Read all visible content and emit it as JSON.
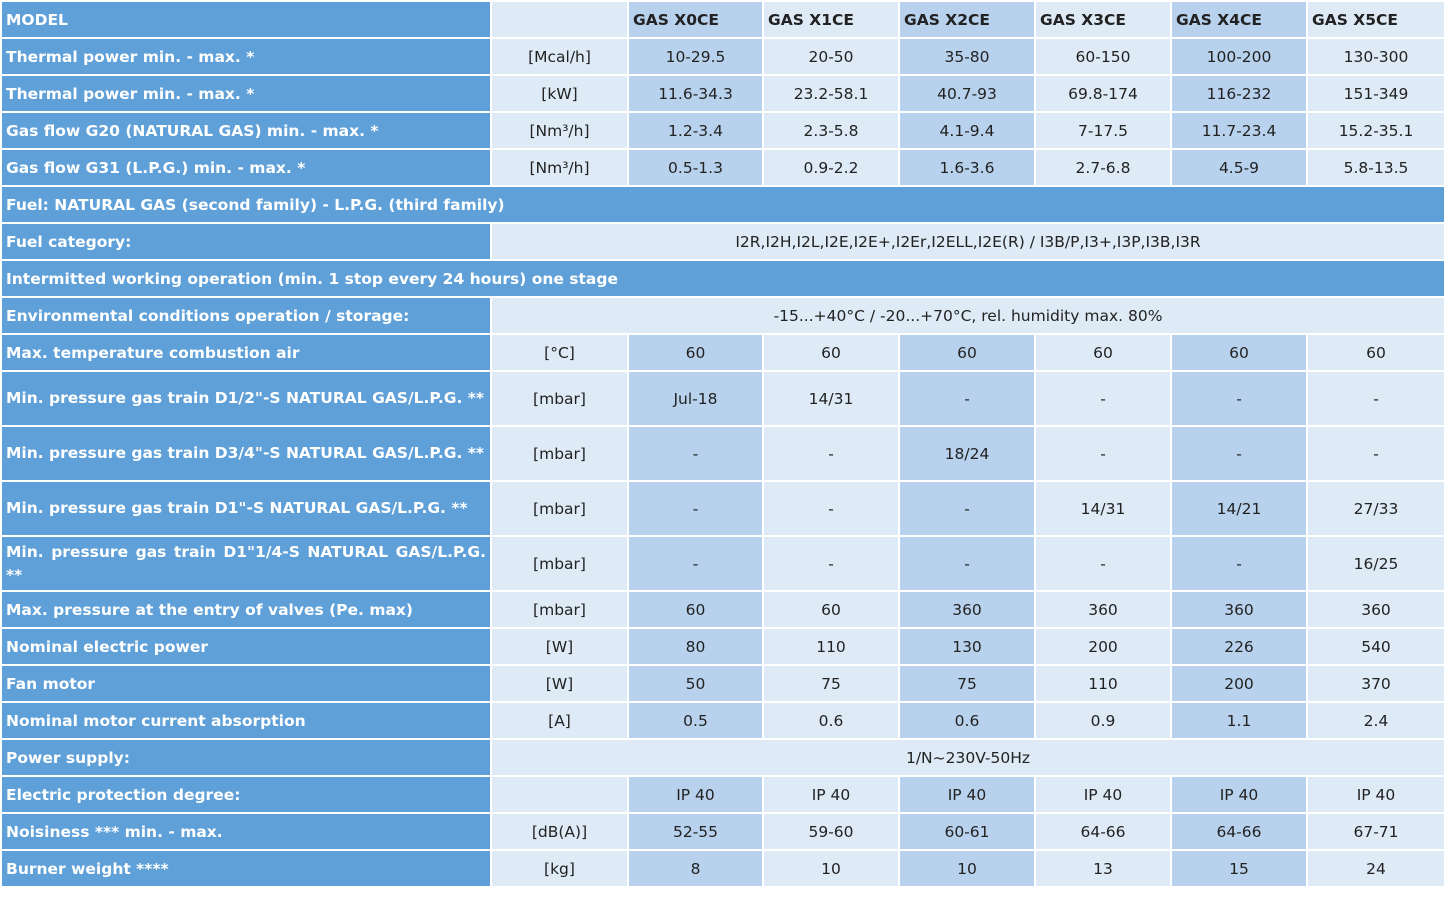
{
  "table": {
    "header": {
      "label": "MODEL",
      "models": [
        "GAS X0CE",
        "GAS X1CE",
        "GAS X2CE",
        "GAS X3CE",
        "GAS X4CE",
        "GAS X5CE"
      ]
    },
    "rows": [
      {
        "label": "Thermal power min. - max. *",
        "unit": "[Mcal/h]",
        "values": [
          "10-29.5",
          "20-50",
          "35-80",
          "60-150",
          "100-200",
          "130-300"
        ]
      },
      {
        "label": "Thermal power min. - max. *",
        "unit": "[kW]",
        "values": [
          "11.6-34.3",
          "23.2-58.1",
          "40.7-93",
          "69.8-174",
          "116-232",
          "151-349"
        ]
      },
      {
        "label": "Gas flow G20 (NATURAL GAS) min. - max. *",
        "unit": "[Nm³/h]",
        "values": [
          "1.2-3.4",
          "2.3-5.8",
          "4.1-9.4",
          "7-17.5",
          "11.7-23.4",
          "15.2-35.1"
        ]
      },
      {
        "label": "Gas flow G31 (L.P.G.) min. - max. *",
        "unit": "[Nm³/h]",
        "values": [
          "0.5-1.3",
          "0.9-2.2",
          "1.6-3.6",
          "2.7-6.8",
          "4.5-9",
          "5.8-13.5"
        ]
      },
      {
        "label": "Fuel: NATURAL GAS (second family) - L.P.G. (third family)"
      },
      {
        "label": "Fuel category:",
        "text": "I2R,I2H,I2L,I2E,I2E+,I2Er,I2ELL,I2E(R) / I3B/P,I3+,I3P,I3B,I3R"
      },
      {
        "label": "Intermitted working operation (min. 1 stop every 24 hours) one stage"
      },
      {
        "label": "Environmental conditions operation / storage:",
        "text": "-15...+40°C / -20...+70°C, rel. humidity max. 80%"
      },
      {
        "label": "Max. temperature combustion air",
        "unit": "[°C]",
        "values": [
          "60",
          "60",
          "60",
          "60",
          "60",
          "60"
        ]
      },
      {
        "label": "Min. pressure gas train D1/2\"-S NATURAL GAS/L.P.G. **",
        "unit": "[mbar]",
        "values": [
          "Jul-18",
          "14/31",
          "-",
          "-",
          "-",
          "-"
        ]
      },
      {
        "label": "Min. pressure gas train D3/4\"-S NATURAL GAS/L.P.G. **",
        "unit": "[mbar]",
        "values": [
          "-",
          "-",
          "18/24",
          "-",
          "-",
          "-"
        ]
      },
      {
        "label": "Min. pressure gas train D1\"-S NATURAL GAS/L.P.G. **",
        "unit": "[mbar]",
        "values": [
          "-",
          "-",
          "-",
          "14/31",
          "14/21",
          "27/33"
        ]
      },
      {
        "label": "Min. pressure gas train D1\"1/4-S NATURAL GAS/L.P.G. **",
        "unit": "[mbar]",
        "values": [
          "-",
          "-",
          "-",
          "-",
          "-",
          "16/25"
        ]
      },
      {
        "label": "Max. pressure at the entry of valves (Pe. max)",
        "unit": "[mbar]",
        "values": [
          "60",
          "60",
          "360",
          "360",
          "360",
          "360"
        ]
      },
      {
        "label": "Nominal electric power",
        "unit": "[W]",
        "values": [
          "80",
          "110",
          "130",
          "200",
          "226",
          "540"
        ]
      },
      {
        "label": "Fan motor",
        "unit": "[W]",
        "values": [
          "50",
          "75",
          "75",
          "110",
          "200",
          "370"
        ]
      },
      {
        "label": "Nominal motor current absorption",
        "unit": "[A]",
        "values": [
          "0.5",
          "0.6",
          "0.6",
          "0.9",
          "1.1",
          "2.4"
        ]
      },
      {
        "label": "Power supply:",
        "text": "1/N~230V-50Hz"
      },
      {
        "label": "Electric protection degree:",
        "values": [
          "IP 40",
          "IP 40",
          "IP 40",
          "IP 40",
          "IP 40",
          "IP 40"
        ]
      },
      {
        "label": "Noisiness *** min. - max.",
        "unit": "[dB(A)]",
        "values": [
          "52-55",
          "59-60",
          "60-61",
          "64-66",
          "64-66",
          "67-71"
        ]
      },
      {
        "label": "Burner weight ****",
        "unit": "[kg]",
        "values": [
          "8",
          "10",
          "10",
          "13",
          "15",
          "24"
        ]
      }
    ]
  }
}
